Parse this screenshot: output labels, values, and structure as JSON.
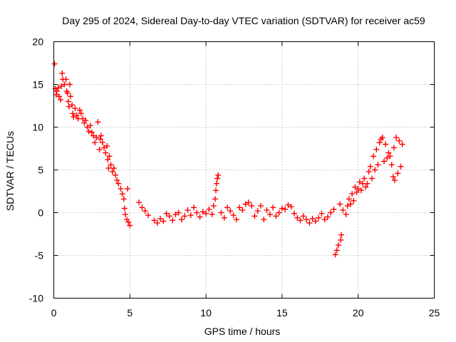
{
  "chart_data": {
    "type": "scatter",
    "title": "Day 295 of 2024, Sidereal Day-to-day VTEC variation (SDTVAR) for receiver ac59",
    "xlabel": "GPS time / hours",
    "ylabel": "SDTVAR / TECUs",
    "xlim": [
      0,
      25
    ],
    "ylim": [
      -10,
      20
    ],
    "xticks": [
      0,
      5,
      10,
      15,
      20,
      25
    ],
    "yticks": [
      -10,
      -5,
      0,
      5,
      10,
      15,
      20
    ],
    "grid": true,
    "legend": "none",
    "marker": "+",
    "series": [
      {
        "name": "SDTVAR",
        "color": "#ff0000",
        "points": [
          [
            0.05,
            17.4
          ],
          [
            0.1,
            14.5
          ],
          [
            0.15,
            13.8
          ],
          [
            0.2,
            14.2
          ],
          [
            0.3,
            14.6
          ],
          [
            0.35,
            13.6
          ],
          [
            0.45,
            13.2
          ],
          [
            0.5,
            14.8
          ],
          [
            0.55,
            16.3
          ],
          [
            0.6,
            15.6
          ],
          [
            0.7,
            15.0
          ],
          [
            0.8,
            15.6
          ],
          [
            0.85,
            14.2
          ],
          [
            0.9,
            14.0
          ],
          [
            0.95,
            13.0
          ],
          [
            1.0,
            12.4
          ],
          [
            1.05,
            15.0
          ],
          [
            1.1,
            13.6
          ],
          [
            1.2,
            12.6
          ],
          [
            1.25,
            11.6
          ],
          [
            1.3,
            11.2
          ],
          [
            1.4,
            12.2
          ],
          [
            1.5,
            11.4
          ],
          [
            1.6,
            11.0
          ],
          [
            1.7,
            12.0
          ],
          [
            1.8,
            11.6
          ],
          [
            1.9,
            11.0
          ],
          [
            2.0,
            10.5
          ],
          [
            2.1,
            10.8
          ],
          [
            2.2,
            10.0
          ],
          [
            2.3,
            9.5
          ],
          [
            2.4,
            10.2
          ],
          [
            2.5,
            9.4
          ],
          [
            2.6,
            9.0
          ],
          [
            2.7,
            8.2
          ],
          [
            2.8,
            8.8
          ],
          [
            2.9,
            10.6
          ],
          [
            3.0,
            7.4
          ],
          [
            3.05,
            8.6
          ],
          [
            3.1,
            9.0
          ],
          [
            3.2,
            8.2
          ],
          [
            3.3,
            7.6
          ],
          [
            3.4,
            7.0
          ],
          [
            3.5,
            7.8
          ],
          [
            3.55,
            6.2
          ],
          [
            3.6,
            5.2
          ],
          [
            3.65,
            6.6
          ],
          [
            3.75,
            5.6
          ],
          [
            3.85,
            4.8
          ],
          [
            3.95,
            5.2
          ],
          [
            4.05,
            4.4
          ],
          [
            4.15,
            3.8
          ],
          [
            4.25,
            3.4
          ],
          [
            4.4,
            2.8
          ],
          [
            4.5,
            2.2
          ],
          [
            4.6,
            1.6
          ],
          [
            4.65,
            0.5
          ],
          [
            4.7,
            -0.2
          ],
          [
            4.8,
            -0.8
          ],
          [
            4.85,
            2.8
          ],
          [
            4.9,
            -1.1
          ],
          [
            5.0,
            -1.5
          ],
          [
            5.6,
            1.2
          ],
          [
            5.8,
            0.6
          ],
          [
            6.0,
            0.2
          ],
          [
            6.2,
            -0.3
          ],
          [
            6.6,
            -0.9
          ],
          [
            6.8,
            -1.2
          ],
          [
            7.0,
            -0.7
          ],
          [
            7.2,
            -1.0
          ],
          [
            7.4,
            -0.1
          ],
          [
            7.6,
            -0.4
          ],
          [
            7.8,
            -0.9
          ],
          [
            8.0,
            -0.2
          ],
          [
            8.2,
            0.0
          ],
          [
            8.4,
            -0.8
          ],
          [
            8.6,
            -0.4
          ],
          [
            8.8,
            0.3
          ],
          [
            9.0,
            -0.3
          ],
          [
            9.2,
            0.6
          ],
          [
            9.4,
            0.0
          ],
          [
            9.6,
            -0.5
          ],
          [
            9.8,
            0.1
          ],
          [
            10.0,
            -0.1
          ],
          [
            10.2,
            0.4
          ],
          [
            10.4,
            -0.2
          ],
          [
            10.5,
            0.8
          ],
          [
            10.6,
            1.6
          ],
          [
            10.65,
            2.6
          ],
          [
            10.7,
            3.4
          ],
          [
            10.75,
            4.0
          ],
          [
            10.8,
            4.4
          ],
          [
            11.0,
            0.0
          ],
          [
            11.2,
            -0.6
          ],
          [
            11.4,
            0.6
          ],
          [
            11.6,
            0.2
          ],
          [
            11.8,
            -0.3
          ],
          [
            12.0,
            -0.8
          ],
          [
            12.2,
            0.6
          ],
          [
            12.4,
            0.3
          ],
          [
            12.6,
            1.0
          ],
          [
            12.8,
            1.2
          ],
          [
            13.0,
            0.8
          ],
          [
            13.2,
            -0.4
          ],
          [
            13.4,
            0.2
          ],
          [
            13.6,
            0.8
          ],
          [
            13.8,
            -0.8
          ],
          [
            14.0,
            0.3
          ],
          [
            14.2,
            -0.2
          ],
          [
            14.4,
            0.6
          ],
          [
            14.6,
            -0.4
          ],
          [
            14.8,
            0.0
          ],
          [
            15.0,
            0.5
          ],
          [
            15.2,
            0.4
          ],
          [
            15.4,
            0.9
          ],
          [
            15.6,
            0.7
          ],
          [
            15.8,
            -0.1
          ],
          [
            16.0,
            -0.6
          ],
          [
            16.2,
            -0.9
          ],
          [
            16.4,
            -0.4
          ],
          [
            16.6,
            -0.8
          ],
          [
            16.8,
            -1.2
          ],
          [
            17.0,
            -0.7
          ],
          [
            17.2,
            -1.0
          ],
          [
            17.4,
            -0.6
          ],
          [
            17.6,
            -0.1
          ],
          [
            17.8,
            -0.8
          ],
          [
            18.0,
            -0.5
          ],
          [
            18.2,
            0.0
          ],
          [
            18.4,
            0.4
          ],
          [
            18.5,
            -4.9
          ],
          [
            18.6,
            -4.4
          ],
          [
            18.7,
            -3.8
          ],
          [
            18.8,
            1.0
          ],
          [
            18.85,
            -3.2
          ],
          [
            18.9,
            -2.6
          ],
          [
            19.0,
            0.3
          ],
          [
            19.2,
            -0.2
          ],
          [
            19.3,
            0.8
          ],
          [
            19.4,
            1.6
          ],
          [
            19.5,
            1.0
          ],
          [
            19.6,
            2.2
          ],
          [
            19.7,
            1.4
          ],
          [
            19.8,
            3.0
          ],
          [
            19.9,
            2.4
          ],
          [
            20.0,
            2.8
          ],
          [
            20.1,
            3.6
          ],
          [
            20.2,
            2.6
          ],
          [
            20.3,
            3.4
          ],
          [
            20.4,
            4.0
          ],
          [
            20.5,
            3.0
          ],
          [
            20.6,
            3.4
          ],
          [
            20.7,
            4.8
          ],
          [
            20.8,
            5.4
          ],
          [
            20.9,
            4.0
          ],
          [
            21.0,
            6.6
          ],
          [
            21.1,
            5.0
          ],
          [
            21.2,
            7.4
          ],
          [
            21.3,
            5.6
          ],
          [
            21.4,
            8.2
          ],
          [
            21.5,
            8.6
          ],
          [
            21.6,
            8.8
          ],
          [
            21.7,
            6.0
          ],
          [
            21.8,
            8.0
          ],
          [
            21.9,
            6.4
          ],
          [
            22.0,
            7.0
          ],
          [
            22.1,
            6.6
          ],
          [
            22.2,
            5.6
          ],
          [
            22.3,
            4.2
          ],
          [
            22.35,
            7.6
          ],
          [
            22.4,
            3.8
          ],
          [
            22.5,
            8.8
          ],
          [
            22.6,
            4.6
          ],
          [
            22.7,
            8.4
          ],
          [
            22.8,
            5.4
          ],
          [
            22.9,
            8.0
          ]
        ]
      }
    ]
  }
}
